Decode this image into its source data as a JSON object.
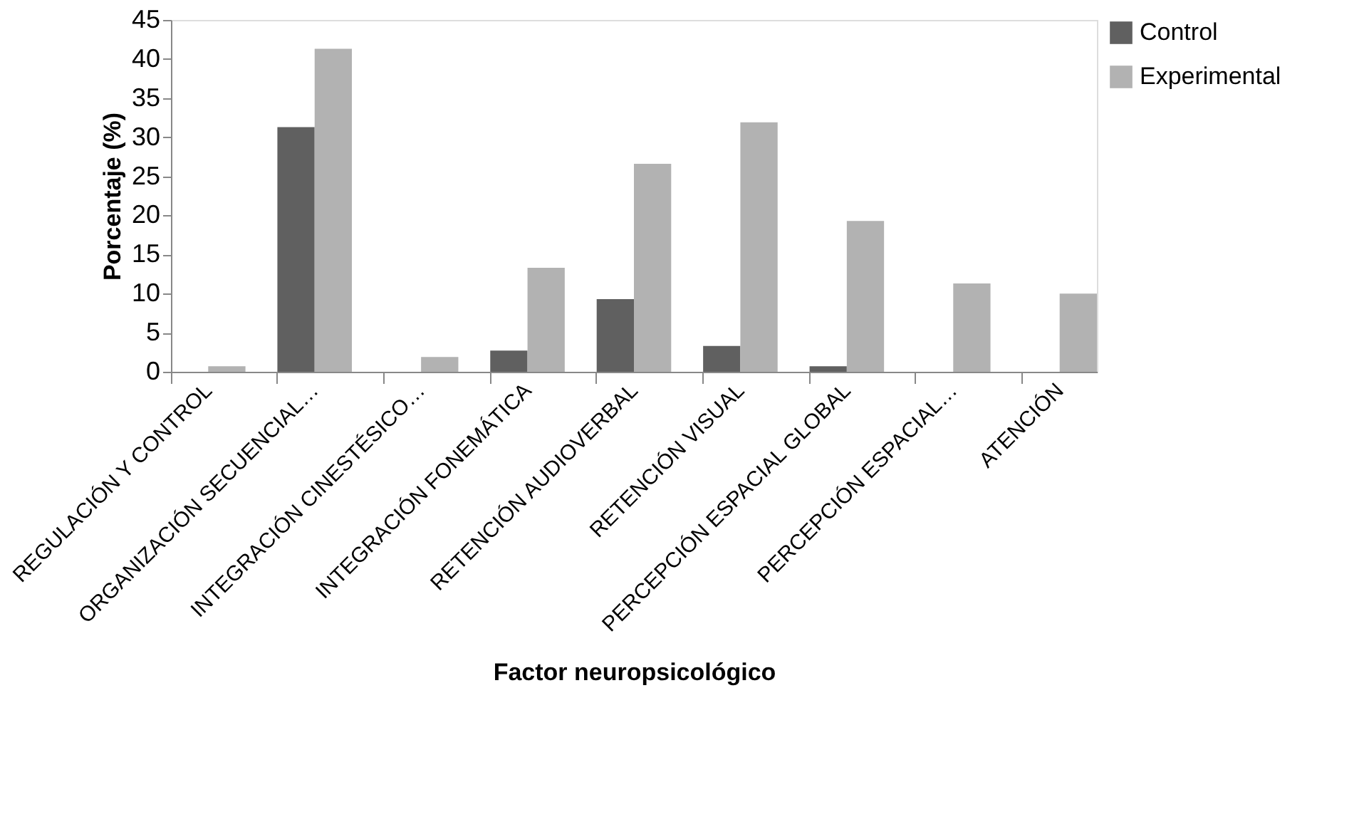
{
  "chart_data": {
    "type": "bar",
    "xlabel": "Factor neuropsicológico",
    "ylabel": "Porcentaje (%)",
    "categories": [
      "REGULACIÓN Y CONTROL",
      "ORGANIZACIÓN SECUENCIAL…",
      "INTEGRACIÓN CINESTÉSICO…",
      "INTEGRACIÓN FONEMÁTICA",
      "RETENCIÓN AUDIOVERBAL",
      "RETENCIÓN VISUAL",
      "PERCEPCIÓN ESPACIAL GLOBAL",
      "PERCEPCIÓN ESPACIAL…",
      "ATENCIÓN"
    ],
    "series": [
      {
        "name": "Control",
        "color": "#606060",
        "values": [
          0,
          31.3,
          0,
          2.7,
          9.3,
          3.3,
          0.7,
          0,
          0
        ]
      },
      {
        "name": "Experimental",
        "color": "#b2b2b2",
        "values": [
          0.7,
          41.3,
          1.9,
          13.3,
          26.6,
          31.9,
          19.3,
          11.3,
          10
        ]
      }
    ],
    "ylim": [
      0,
      45
    ],
    "yticks": [
      0,
      5,
      10,
      15,
      20,
      25,
      30,
      35,
      40,
      45
    ],
    "grid": false,
    "legend": "top right"
  }
}
